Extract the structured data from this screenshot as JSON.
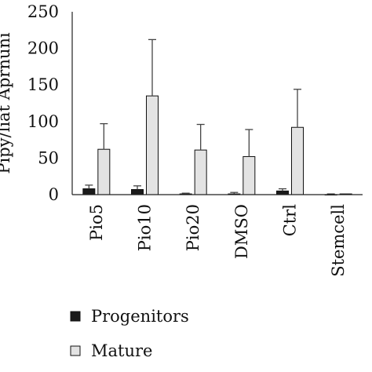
{
  "chart_data": {
    "type": "bar",
    "categories": [
      "Pio5",
      "Pio10",
      "Pio20",
      "DMSO",
      "Ctrl",
      "Stemcell"
    ],
    "series": [
      {
        "name": "Progenitors",
        "values": [
          8,
          7,
          1,
          1,
          5,
          0
        ],
        "error": [
          5,
          5,
          1,
          2,
          3,
          1
        ],
        "color": "#1a1a1a"
      },
      {
        "name": "Mature",
        "values": [
          62,
          135,
          61,
          52,
          92,
          1
        ],
        "error": [
          35,
          77,
          35,
          37,
          52,
          0
        ],
        "color": "#e3e3e3"
      }
    ],
    "yticks": [
      0,
      50,
      100,
      150,
      200,
      250
    ],
    "ylim": [
      0,
      250
    ],
    "ylabel": "Pipy/liat Aprnuni",
    "xlabel": "",
    "grid": false,
    "legend_position": "bottom-left"
  }
}
